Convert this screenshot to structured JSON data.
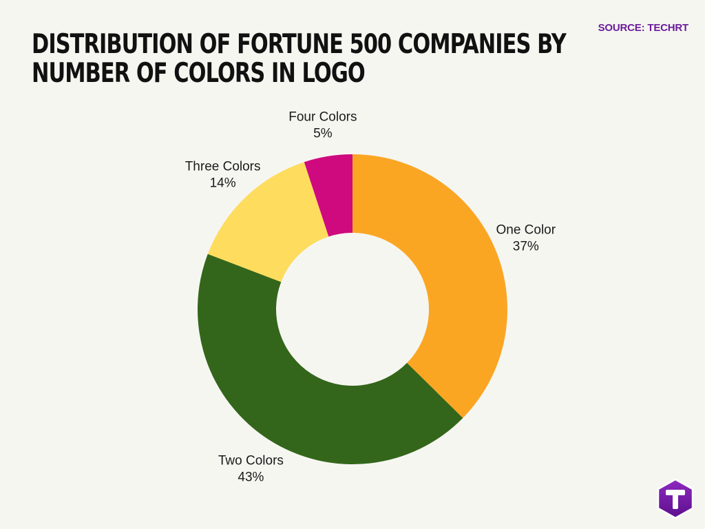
{
  "header": {
    "title_lines": [
      "DISTRIBUTION OF FORTUNE 500 COMPANIES BY",
      "NUMBER OF COLORS IN LOGO"
    ],
    "source": "SOURCE: TECHRT"
  },
  "chart_data": {
    "type": "pie",
    "title": "DISTRIBUTION OF FORTUNE 500 COMPANIES BY NUMBER OF COLORS IN LOGO",
    "donut": true,
    "legend": "none",
    "slices": [
      {
        "label": "One Color",
        "value": 37,
        "display": "37%",
        "color": "#fba623"
      },
      {
        "label": "Two Colors",
        "value": 43,
        "display": "43%",
        "color": "#33661a"
      },
      {
        "label": "Three Colors",
        "value": 14,
        "display": "14%",
        "color": "#fedc5e"
      },
      {
        "label": "Four Colors",
        "value": 5,
        "display": "5%",
        "color": "#cf0a7e"
      }
    ]
  },
  "brand": {
    "logo_icon": "techrt-hexagon-logo-icon",
    "colors": {
      "hex_top": "#8e2bbf",
      "hex_bottom": "#5d0f8e",
      "letter": "#ffffff"
    }
  }
}
